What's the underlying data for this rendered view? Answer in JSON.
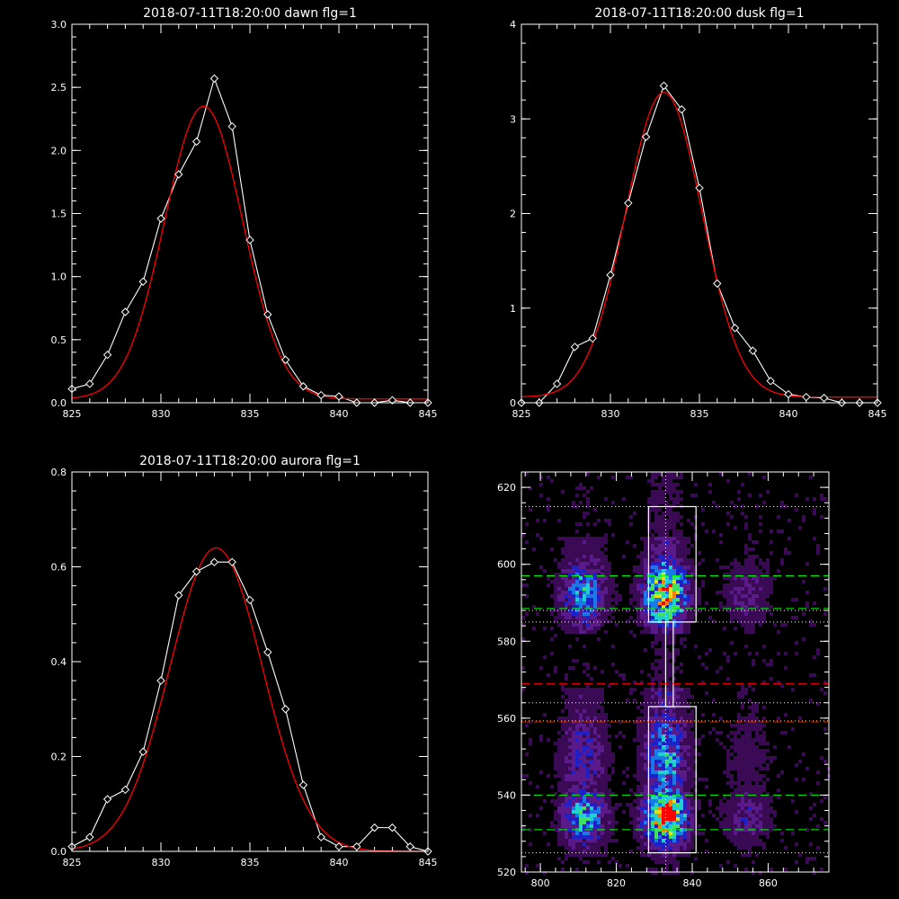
{
  "chart_data": [
    {
      "type": "line",
      "title": "2018-07-11T18:20:00 dawn flg=1",
      "xlim": [
        825,
        845
      ],
      "ylim": [
        0.0,
        3.0
      ],
      "xticks": [
        "825",
        "830",
        "835",
        "840",
        "845"
      ],
      "xtick_values": [
        825,
        830,
        835,
        840,
        845
      ],
      "yticks": [
        "0.0",
        "0.5",
        "1.0",
        "1.5",
        "2.0",
        "2.5",
        "3.0"
      ],
      "ytick_values": [
        0,
        0.5,
        1.0,
        1.5,
        2.0,
        2.5,
        3.0
      ],
      "series": [
        {
          "color": "#ffffff",
          "marker": "diamond",
          "x": [
            825,
            826,
            827,
            828,
            829,
            830,
            831,
            832,
            833,
            834,
            835,
            836,
            837,
            838,
            839,
            840,
            841,
            842,
            843,
            844,
            845
          ],
          "y": [
            0.11,
            0.15,
            0.38,
            0.72,
            0.96,
            1.46,
            1.81,
            2.07,
            2.57,
            2.19,
            1.29,
            0.7,
            0.34,
            0.13,
            0.06,
            0.05,
            0.0,
            0.0,
            0.02,
            0.0,
            0.0
          ]
        },
        {
          "color": "#ff0000",
          "marker": "none",
          "gaussian": {
            "amp": 2.32,
            "center": 832.4,
            "sigma": 2.2,
            "offset": 0.03,
            "from": 825,
            "to": 845
          }
        }
      ]
    },
    {
      "type": "line",
      "title": "2018-07-11T18:20:00 dusk flg=1",
      "xlim": [
        825,
        845
      ],
      "ylim": [
        0,
        4
      ],
      "xticks": [
        "825",
        "830",
        "835",
        "840",
        "845"
      ],
      "xtick_values": [
        825,
        830,
        835,
        840,
        845
      ],
      "yticks": [
        "0",
        "1",
        "2",
        "3",
        "4"
      ],
      "ytick_values": [
        0,
        1,
        2,
        3,
        4
      ],
      "series": [
        {
          "color": "#ffffff",
          "marker": "diamond",
          "x": [
            825,
            826,
            827,
            828,
            829,
            830,
            831,
            832,
            833,
            834,
            835,
            836,
            837,
            838,
            839,
            840,
            841,
            842,
            843,
            844,
            845
          ],
          "y": [
            0.0,
            0.0,
            0.2,
            0.59,
            0.68,
            1.35,
            2.11,
            2.81,
            3.35,
            3.1,
            2.27,
            1.26,
            0.79,
            0.55,
            0.23,
            0.09,
            0.06,
            0.05,
            0.0,
            0.0,
            0.0
          ]
        },
        {
          "color": "#ff0000",
          "marker": "none",
          "gaussian": {
            "amp": 3.22,
            "center": 833.0,
            "sigma": 2.15,
            "offset": 0.06,
            "from": 825,
            "to": 845
          }
        }
      ]
    },
    {
      "type": "line",
      "title": "2018-07-11T18:20:00 aurora flg=1",
      "xlim": [
        825,
        845
      ],
      "ylim": [
        0.0,
        0.8
      ],
      "xticks": [
        "825",
        "830",
        "835",
        "840",
        "845"
      ],
      "xtick_values": [
        825,
        830,
        835,
        840,
        845
      ],
      "yticks": [
        "0.0",
        "0.2",
        "0.4",
        "0.6",
        "0.8"
      ],
      "ytick_values": [
        0,
        0.2,
        0.4,
        0.6,
        0.8
      ],
      "series": [
        {
          "color": "#ffffff",
          "marker": "diamond",
          "x": [
            825,
            826,
            827,
            828,
            829,
            830,
            831,
            832,
            833,
            834,
            835,
            836,
            837,
            838,
            839,
            840,
            841,
            842,
            843,
            844,
            845
          ],
          "y": [
            0.01,
            0.03,
            0.11,
            0.13,
            0.21,
            0.36,
            0.54,
            0.59,
            0.61,
            0.61,
            0.53,
            0.42,
            0.3,
            0.14,
            0.03,
            0.01,
            0.01,
            0.05,
            0.05,
            0.01,
            0.0
          ]
        },
        {
          "color": "#ff0000",
          "marker": "none",
          "gaussian": {
            "amp": 0.64,
            "center": 833.1,
            "sigma": 2.6,
            "offset": 0.0,
            "from": 825,
            "to": 845
          }
        }
      ]
    },
    {
      "type": "heatmap",
      "title": "",
      "xlim": [
        795,
        876
      ],
      "ylim": [
        520,
        624
      ],
      "xticks": [
        "800",
        "820",
        "840",
        "860"
      ],
      "xtick_values": [
        800,
        820,
        840,
        860
      ],
      "yticks": [
        "520",
        "540",
        "560",
        "580",
        "600",
        "620"
      ],
      "ytick_values": [
        520,
        540,
        560,
        580,
        600,
        620
      ],
      "colormap": [
        "#000000",
        "#3a0a55",
        "#5a1a8a",
        "#2020c8",
        "#1a78e8",
        "#20d0d0",
        "#40e060",
        "#e0e020",
        "#ff8000",
        "#ff0000"
      ],
      "columns": [
        {
          "center": 811,
          "width": 4.2,
          "amp": 0.5
        },
        {
          "center": 832.5,
          "width": 4.0,
          "amp": 0.85
        },
        {
          "center": 854,
          "width": 4.5,
          "amp": 0.22
        }
      ],
      "bands": [
        {
          "center": 593,
          "width": 6.5,
          "amp": 0.9
        },
        {
          "center": 550,
          "width": 10,
          "amp": 0.55
        },
        {
          "center": 535,
          "width": 5.5,
          "amp": 1.0
        }
      ],
      "bright_spot": {
        "x": 833,
        "y": 536
      },
      "boxes": [
        {
          "x0": 828.5,
          "x1": 841,
          "y0": 585,
          "y1": 615,
          "color": "#ffffff"
        },
        {
          "x0": 828.5,
          "x1": 841,
          "y0": 525,
          "y1": 563,
          "color": "#ffffff"
        },
        {
          "x0": 833,
          "x1": 835,
          "y0": 563,
          "y1": 585,
          "color": "#ffffff"
        }
      ],
      "vline": {
        "x": 833,
        "color": "#ffffff",
        "style": "dotted"
      },
      "hlines": [
        {
          "y": 615,
          "color": "#ffffff",
          "style": "dotted"
        },
        {
          "y": 597,
          "color": "#00ff00",
          "style": "dashed"
        },
        {
          "y": 588.5,
          "color": "#00ff00",
          "style": "dashed"
        },
        {
          "y": 588,
          "color": "#ffffff",
          "style": "dotted"
        },
        {
          "y": 585,
          "color": "#ffffff",
          "style": "dotted"
        },
        {
          "y": 569,
          "color": "#ff0000",
          "style": "dashed"
        },
        {
          "y": 564,
          "color": "#ffffff",
          "style": "dotted"
        },
        {
          "y": 559,
          "color": "#ff0000",
          "style": "dashed"
        },
        {
          "y": 559.3,
          "color": "#ffff00",
          "style": "dotted"
        },
        {
          "y": 540,
          "color": "#00ff00",
          "style": "dashed"
        },
        {
          "y": 531,
          "color": "#00ff00",
          "style": "dashed"
        },
        {
          "y": 525,
          "color": "#ffffff",
          "style": "dotted"
        }
      ]
    }
  ]
}
